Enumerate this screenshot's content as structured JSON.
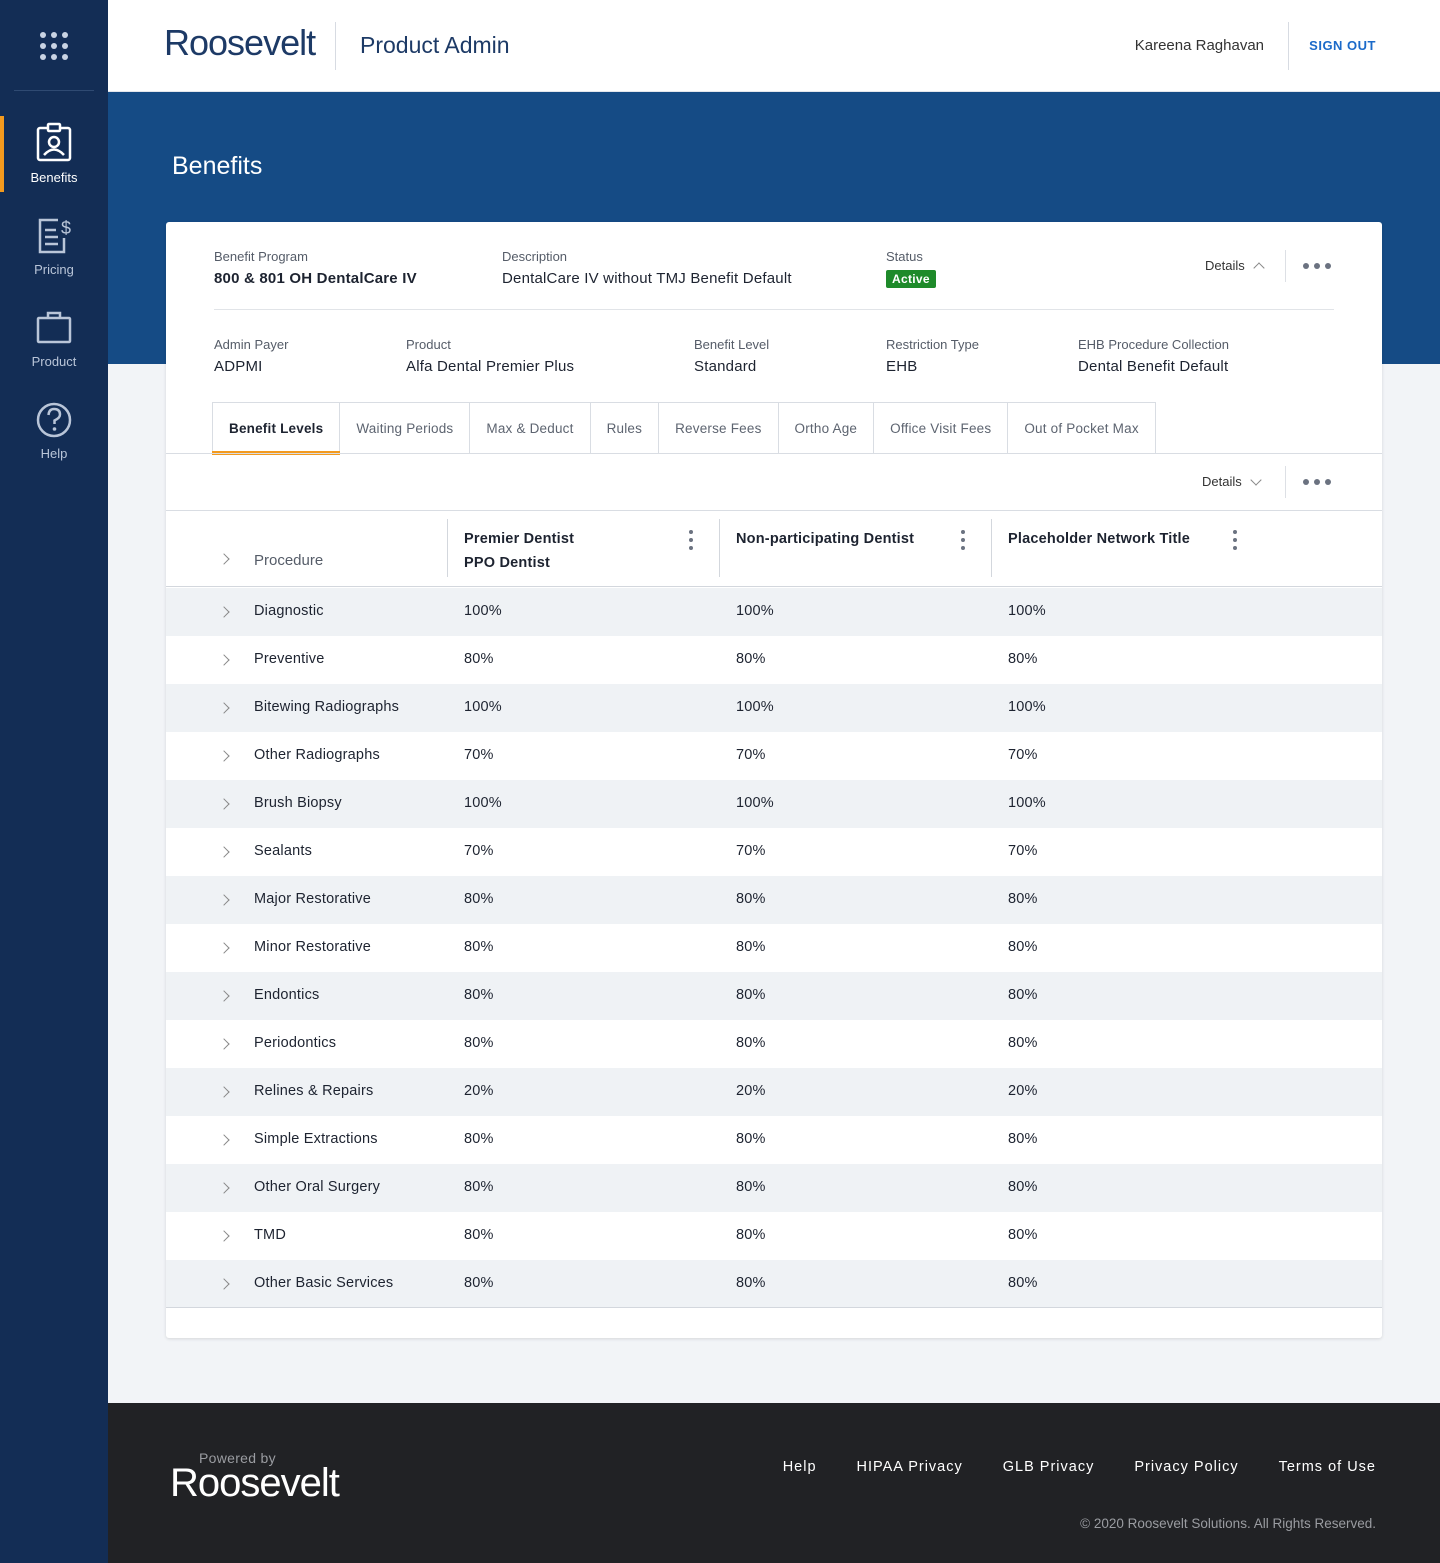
{
  "brand": "Roosevelt",
  "header": {
    "app_title": "Product Admin",
    "user_name": "Kareena Raghavan",
    "sign_out": "SIGN OUT"
  },
  "sidebar": {
    "items": [
      {
        "label": "Benefits",
        "icon": "badge-icon",
        "active": true
      },
      {
        "label": "Pricing",
        "icon": "invoice-dollar-icon",
        "active": false
      },
      {
        "label": "Product",
        "icon": "briefcase-icon",
        "active": false
      },
      {
        "label": "Help",
        "icon": "question-circle-icon",
        "active": false
      }
    ]
  },
  "page_title": "Benefits",
  "program": {
    "benefit_program_label": "Benefit Program",
    "benefit_program": "800 & 801 OH DentalCare IV",
    "description_label": "Description",
    "description": "DentalCare IV without TMJ Benefit Default",
    "status_label": "Status",
    "status": "Active",
    "details_label": "Details",
    "admin_payer_label": "Admin Payer",
    "admin_payer": "ADPMI",
    "product_label": "Product",
    "product": "Alfa Dental Premier Plus",
    "benefit_level_label": "Benefit Level",
    "benefit_level": "Standard",
    "restriction_type_label": "Restriction Type",
    "restriction_type": "EHB",
    "ehb_label": "EHB Procedure Collection",
    "ehb": "Dental Benefit Default"
  },
  "tabs": [
    "Benefit Levels",
    "Waiting Periods",
    "Max & Deduct",
    "Rules",
    "Reverse Fees",
    "Ortho Age",
    "Office Visit Fees",
    "Out of Pocket Max"
  ],
  "toolbar": {
    "details_label": "Details"
  },
  "table": {
    "procedure_header": "Procedure",
    "columns": [
      {
        "name": "Premier Dentist",
        "sub": "PPO Dentist"
      },
      {
        "name": "Non-participating Dentist",
        "sub": ""
      },
      {
        "name": "Placeholder Network Title",
        "sub": ""
      }
    ],
    "rows": [
      {
        "procedure": "Diagnostic",
        "values": [
          "100%",
          "100%",
          "100%"
        ]
      },
      {
        "procedure": "Preventive",
        "values": [
          "80%",
          "80%",
          "80%"
        ]
      },
      {
        "procedure": "Bitewing Radiographs",
        "values": [
          "100%",
          "100%",
          "100%"
        ]
      },
      {
        "procedure": "Other Radiographs",
        "values": [
          "70%",
          "70%",
          "70%"
        ]
      },
      {
        "procedure": "Brush Biopsy",
        "values": [
          "100%",
          "100%",
          "100%"
        ]
      },
      {
        "procedure": "Sealants",
        "values": [
          "70%",
          "70%",
          "70%"
        ]
      },
      {
        "procedure": "Major Restorative",
        "values": [
          "80%",
          "80%",
          "80%"
        ]
      },
      {
        "procedure": "Minor Restorative",
        "values": [
          "80%",
          "80%",
          "80%"
        ]
      },
      {
        "procedure": "Endontics",
        "values": [
          "80%",
          "80%",
          "80%"
        ]
      },
      {
        "procedure": "Periodontics",
        "values": [
          "80%",
          "80%",
          "80%"
        ]
      },
      {
        "procedure": "Relines & Repairs",
        "values": [
          "20%",
          "20%",
          "20%"
        ]
      },
      {
        "procedure": "Simple Extractions",
        "values": [
          "80%",
          "80%",
          "80%"
        ]
      },
      {
        "procedure": "Other Oral Surgery",
        "values": [
          "80%",
          "80%",
          "80%"
        ]
      },
      {
        "procedure": "TMD",
        "values": [
          "80%",
          "80%",
          "80%"
        ]
      },
      {
        "procedure": "Other Basic Services",
        "values": [
          "80%",
          "80%",
          "80%"
        ]
      }
    ]
  },
  "footer": {
    "powered_by": "Powered by",
    "brand": "Roosevelt",
    "links": [
      "Help",
      "HIPAA Privacy",
      "GLB Privacy",
      "Privacy Policy",
      "Terms of Use"
    ],
    "copyright": "© 2020 Roosevelt Solutions. All Rights Reserved."
  },
  "colors": {
    "sidebar": "#132d55",
    "banner": "#154b85",
    "accent": "#f39a1e",
    "status_active": "#1e8a2a",
    "link": "#1b6ac9",
    "footer": "#212225"
  }
}
